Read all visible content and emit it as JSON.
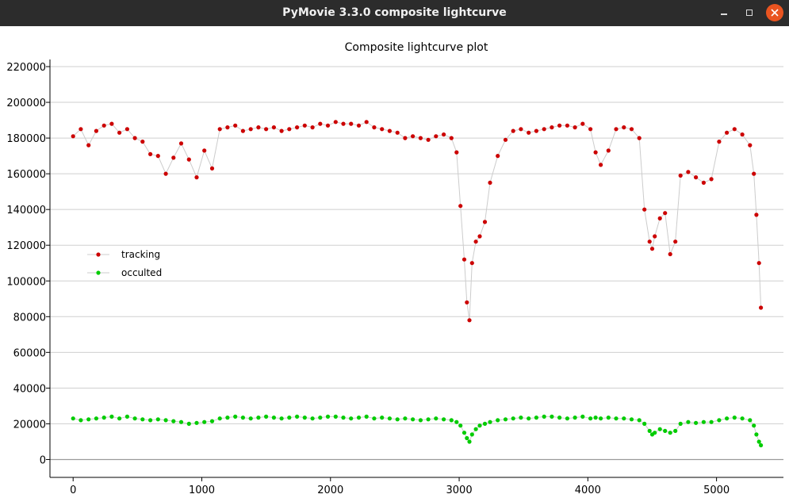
{
  "window": {
    "title": "PyMovie 3.3.0 composite lightcurve"
  },
  "chart_data": {
    "type": "scatter",
    "title": "Composite lightcurve plot",
    "xlabel": "",
    "ylabel": "",
    "xlim": [
      -180,
      5520
    ],
    "ylim": [
      -10000,
      224000
    ],
    "x_ticks": [
      0,
      1000,
      2000,
      3000,
      4000,
      5000
    ],
    "x_tick_labels": [
      "0",
      "1000",
      "2000",
      "3000",
      "4000",
      "5000"
    ],
    "y_ticks": [
      0,
      20000,
      40000,
      60000,
      80000,
      100000,
      120000,
      140000,
      160000,
      180000,
      200000,
      220000
    ],
    "y_tick_labels": [
      "0",
      "20000",
      "40000",
      "60000",
      "80000",
      "100000",
      "120000",
      "140000",
      "160000",
      "180000",
      "200000",
      "220000"
    ],
    "grid": true,
    "legend_position": "middle-left",
    "series": [
      {
        "name": "tracking",
        "color": "#cc0000",
        "line_color": "#cccccc",
        "x": [
          0,
          60,
          120,
          180,
          240,
          300,
          360,
          420,
          480,
          540,
          600,
          660,
          720,
          780,
          840,
          900,
          960,
          1020,
          1080,
          1140,
          1200,
          1260,
          1320,
          1380,
          1440,
          1500,
          1560,
          1620,
          1680,
          1740,
          1800,
          1860,
          1920,
          1980,
          2040,
          2100,
          2160,
          2220,
          2280,
          2340,
          2400,
          2460,
          2520,
          2580,
          2640,
          2700,
          2760,
          2820,
          2880,
          2940,
          2980,
          3010,
          3040,
          3060,
          3080,
          3100,
          3130,
          3160,
          3200,
          3240,
          3300,
          3360,
          3420,
          3480,
          3540,
          3600,
          3660,
          3720,
          3780,
          3840,
          3900,
          3960,
          4020,
          4060,
          4100,
          4160,
          4220,
          4280,
          4340,
          4400,
          4440,
          4480,
          4500,
          4520,
          4560,
          4600,
          4640,
          4680,
          4720,
          4780,
          4840,
          4900,
          4960,
          5020,
          5080,
          5140,
          5200,
          5260,
          5290,
          5310,
          5330,
          5345
        ],
        "y": [
          181000,
          185000,
          176000,
          184000,
          187000,
          188000,
          183000,
          185000,
          180000,
          178000,
          171000,
          170000,
          160000,
          169000,
          177000,
          168000,
          158000,
          173000,
          163000,
          185000,
          186000,
          187000,
          184000,
          185000,
          186000,
          185000,
          186000,
          184000,
          185000,
          186000,
          187000,
          186000,
          188000,
          187000,
          189000,
          188000,
          188000,
          187000,
          189000,
          186000,
          185000,
          184000,
          183000,
          180000,
          181000,
          180000,
          179000,
          181000,
          182000,
          180000,
          172000,
          142000,
          112000,
          88000,
          78000,
          110000,
          122000,
          125000,
          133000,
          155000,
          170000,
          179000,
          184000,
          185000,
          183000,
          184000,
          185000,
          186000,
          187000,
          187000,
          186000,
          188000,
          185000,
          172000,
          165000,
          173000,
          185000,
          186000,
          185000,
          180000,
          140000,
          122000,
          118000,
          125000,
          135000,
          138000,
          115000,
          122000,
          159000,
          161000,
          158000,
          155000,
          157000,
          178000,
          183000,
          185000,
          182000,
          176000,
          160000,
          137000,
          110000,
          85000
        ]
      },
      {
        "name": "occulted",
        "color": "#00cc00",
        "line_color": "#cccccc",
        "x": [
          0,
          60,
          120,
          180,
          240,
          300,
          360,
          420,
          480,
          540,
          600,
          660,
          720,
          780,
          840,
          900,
          960,
          1020,
          1080,
          1140,
          1200,
          1260,
          1320,
          1380,
          1440,
          1500,
          1560,
          1620,
          1680,
          1740,
          1800,
          1860,
          1920,
          1980,
          2040,
          2100,
          2160,
          2220,
          2280,
          2340,
          2400,
          2460,
          2520,
          2580,
          2640,
          2700,
          2760,
          2820,
          2880,
          2940,
          2980,
          3010,
          3040,
          3060,
          3080,
          3100,
          3130,
          3160,
          3200,
          3240,
          3300,
          3360,
          3420,
          3480,
          3540,
          3600,
          3660,
          3720,
          3780,
          3840,
          3900,
          3960,
          4020,
          4060,
          4100,
          4160,
          4220,
          4280,
          4340,
          4400,
          4440,
          4480,
          4500,
          4520,
          4560,
          4600,
          4640,
          4680,
          4720,
          4780,
          4840,
          4900,
          4960,
          5020,
          5080,
          5140,
          5200,
          5260,
          5290,
          5310,
          5330,
          5345
        ],
        "y": [
          23000,
          22000,
          22500,
          23000,
          23500,
          24000,
          23000,
          24000,
          23000,
          22500,
          22000,
          22500,
          22000,
          21500,
          21000,
          20000,
          20500,
          21000,
          21500,
          23000,
          23500,
          24000,
          23500,
          23000,
          23500,
          24000,
          23500,
          23000,
          23500,
          24000,
          23500,
          23000,
          23500,
          24000,
          24000,
          23500,
          23000,
          23500,
          24000,
          23000,
          23500,
          23000,
          22500,
          23000,
          22500,
          22000,
          22500,
          23000,
          22500,
          22000,
          21000,
          19000,
          15000,
          12000,
          10000,
          14000,
          17000,
          19000,
          20000,
          21000,
          22000,
          22500,
          23000,
          23500,
          23000,
          23500,
          24000,
          24000,
          23500,
          23000,
          23500,
          24000,
          23000,
          23500,
          23000,
          23500,
          23000,
          23000,
          22500,
          22000,
          20000,
          16000,
          14000,
          15000,
          17000,
          16000,
          15000,
          16000,
          20000,
          21000,
          20500,
          21000,
          21000,
          22000,
          23000,
          23500,
          23000,
          22000,
          19000,
          14000,
          10000,
          8000
        ]
      }
    ]
  }
}
